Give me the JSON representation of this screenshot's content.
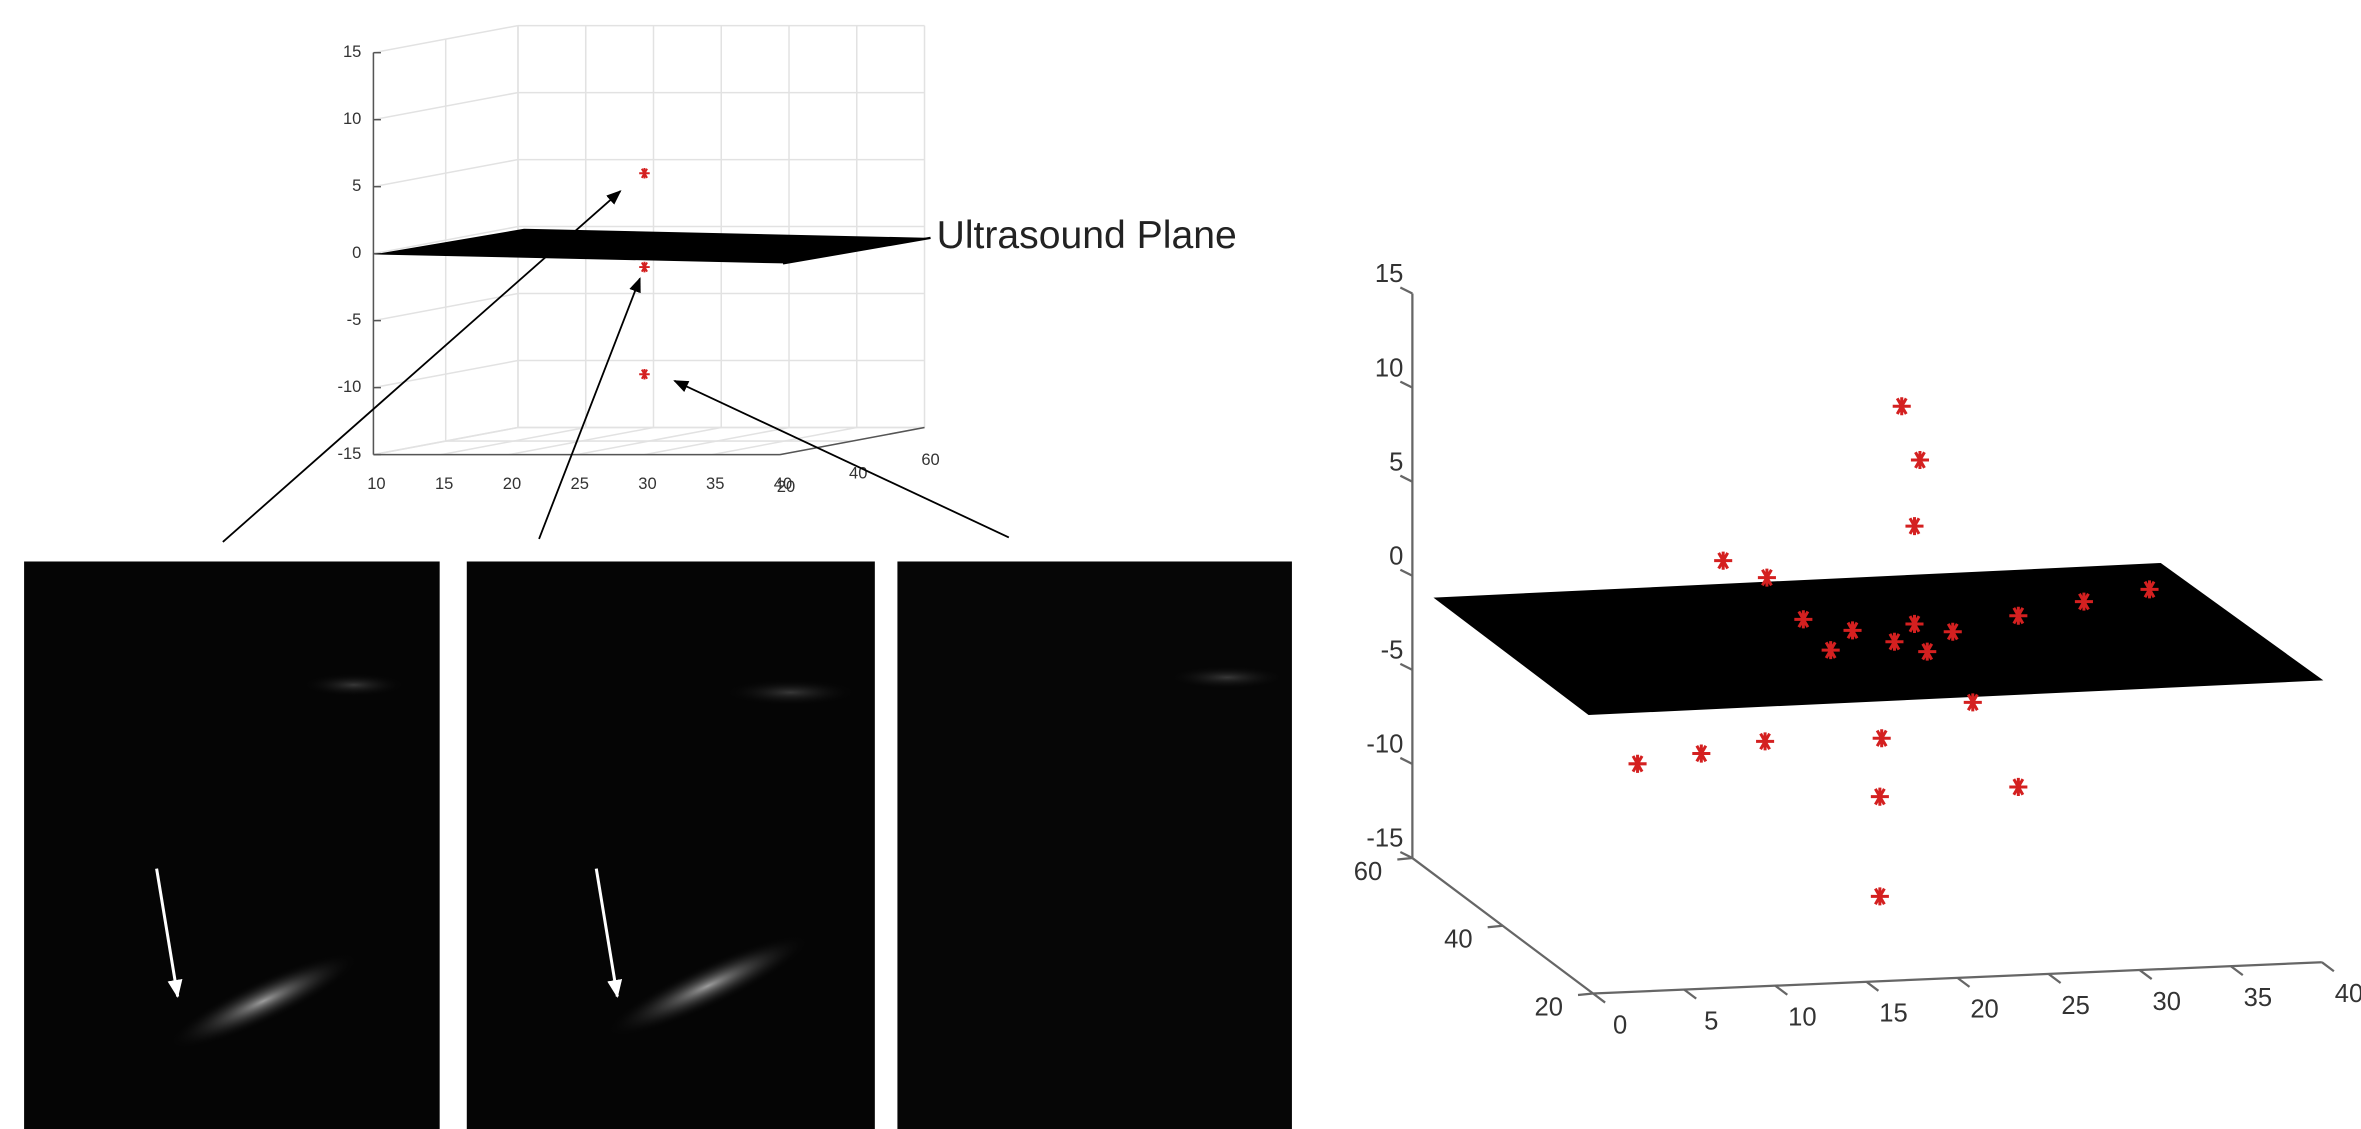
{
  "chart_data": [
    {
      "type": "scatter3d",
      "annotation": "Ultrasound Plane",
      "color": "#d42020",
      "grid": true,
      "x": [
        30,
        30,
        30
      ],
      "y": [
        20,
        20,
        20
      ],
      "z": [
        6,
        -1,
        -9
      ],
      "xlim": [
        10,
        40
      ],
      "ylim": [
        20,
        60
      ],
      "zlim": [
        -15,
        15
      ],
      "xticks": [
        10,
        15,
        20,
        25,
        30,
        35,
        40
      ],
      "yticks": [
        20,
        40,
        60
      ],
      "zticks": [
        -15,
        -10,
        -5,
        0,
        5,
        10,
        15
      ]
    },
    {
      "type": "scatter3d",
      "color": "#d42020",
      "grid": false,
      "x": [
        21.9,
        22.9,
        22.6,
        12.1,
        14.5,
        16.5,
        19.2,
        18.0,
        21.5,
        22.6,
        23.3,
        24.7,
        28.3,
        31.9,
        35.5,
        25.8,
        7.4,
        10.9,
        14.4,
        20.8,
        20.7,
        28.3,
        20.7
      ],
      "y": [
        40,
        40,
        40,
        40,
        40,
        40,
        40,
        40,
        40,
        40,
        40,
        40,
        40,
        40,
        40,
        40,
        40,
        40,
        40,
        40,
        40,
        40,
        40
      ],
      "z": [
        11.7,
        8.8,
        5.3,
        3.9,
        2.9,
        0.6,
        -0.1,
        -1.1,
        -0.8,
        0.1,
        -1.4,
        -0.4,
        0.3,
        0.9,
        1.4,
        -4.2,
        -6.7,
        -6.3,
        -5.8,
        -5.9,
        -9.0,
        -8.8,
        -14.3
      ],
      "xlim": [
        0,
        40
      ],
      "ylim": [
        20,
        60
      ],
      "zlim": [
        -15,
        15
      ],
      "xticks": [
        0,
        5,
        10,
        15,
        20,
        25,
        30,
        35,
        40
      ],
      "yticks": [
        20,
        40,
        60
      ],
      "zticks": [
        -15,
        -10,
        -5,
        0,
        5,
        10,
        15
      ]
    }
  ]
}
